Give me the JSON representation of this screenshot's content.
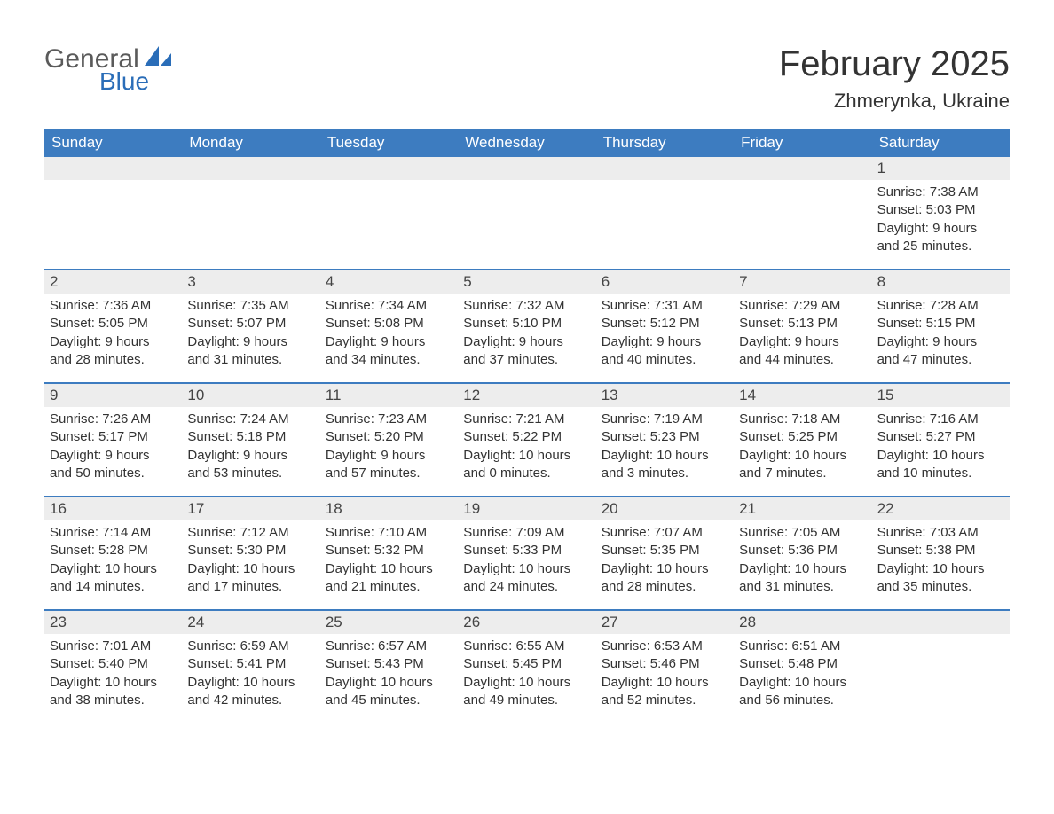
{
  "logo": {
    "word1": "General",
    "word2": "Blue"
  },
  "title": "February 2025",
  "location": "Zhmerynka, Ukraine",
  "colors": {
    "header_bg": "#3d7cc0",
    "header_text": "#ffffff",
    "daynum_bg": "#ededed",
    "border": "#3d7cc0",
    "text": "#333333",
    "logo_gray": "#5a5a5a",
    "logo_blue": "#2a6db8"
  },
  "typography": {
    "title_size": 40,
    "location_size": 22,
    "dayheader_size": 17,
    "body_size": 15
  },
  "days_of_week": [
    "Sunday",
    "Monday",
    "Tuesday",
    "Wednesday",
    "Thursday",
    "Friday",
    "Saturday"
  ],
  "weeks": [
    [
      {
        "blank": true
      },
      {
        "blank": true
      },
      {
        "blank": true
      },
      {
        "blank": true
      },
      {
        "blank": true
      },
      {
        "blank": true
      },
      {
        "day": "1",
        "sunrise": "Sunrise: 7:38 AM",
        "sunset": "Sunset: 5:03 PM",
        "daylight1": "Daylight: 9 hours",
        "daylight2": "and 25 minutes."
      }
    ],
    [
      {
        "day": "2",
        "sunrise": "Sunrise: 7:36 AM",
        "sunset": "Sunset: 5:05 PM",
        "daylight1": "Daylight: 9 hours",
        "daylight2": "and 28 minutes."
      },
      {
        "day": "3",
        "sunrise": "Sunrise: 7:35 AM",
        "sunset": "Sunset: 5:07 PM",
        "daylight1": "Daylight: 9 hours",
        "daylight2": "and 31 minutes."
      },
      {
        "day": "4",
        "sunrise": "Sunrise: 7:34 AM",
        "sunset": "Sunset: 5:08 PM",
        "daylight1": "Daylight: 9 hours",
        "daylight2": "and 34 minutes."
      },
      {
        "day": "5",
        "sunrise": "Sunrise: 7:32 AM",
        "sunset": "Sunset: 5:10 PM",
        "daylight1": "Daylight: 9 hours",
        "daylight2": "and 37 minutes."
      },
      {
        "day": "6",
        "sunrise": "Sunrise: 7:31 AM",
        "sunset": "Sunset: 5:12 PM",
        "daylight1": "Daylight: 9 hours",
        "daylight2": "and 40 minutes."
      },
      {
        "day": "7",
        "sunrise": "Sunrise: 7:29 AM",
        "sunset": "Sunset: 5:13 PM",
        "daylight1": "Daylight: 9 hours",
        "daylight2": "and 44 minutes."
      },
      {
        "day": "8",
        "sunrise": "Sunrise: 7:28 AM",
        "sunset": "Sunset: 5:15 PM",
        "daylight1": "Daylight: 9 hours",
        "daylight2": "and 47 minutes."
      }
    ],
    [
      {
        "day": "9",
        "sunrise": "Sunrise: 7:26 AM",
        "sunset": "Sunset: 5:17 PM",
        "daylight1": "Daylight: 9 hours",
        "daylight2": "and 50 minutes."
      },
      {
        "day": "10",
        "sunrise": "Sunrise: 7:24 AM",
        "sunset": "Sunset: 5:18 PM",
        "daylight1": "Daylight: 9 hours",
        "daylight2": "and 53 minutes."
      },
      {
        "day": "11",
        "sunrise": "Sunrise: 7:23 AM",
        "sunset": "Sunset: 5:20 PM",
        "daylight1": "Daylight: 9 hours",
        "daylight2": "and 57 minutes."
      },
      {
        "day": "12",
        "sunrise": "Sunrise: 7:21 AM",
        "sunset": "Sunset: 5:22 PM",
        "daylight1": "Daylight: 10 hours",
        "daylight2": "and 0 minutes."
      },
      {
        "day": "13",
        "sunrise": "Sunrise: 7:19 AM",
        "sunset": "Sunset: 5:23 PM",
        "daylight1": "Daylight: 10 hours",
        "daylight2": "and 3 minutes."
      },
      {
        "day": "14",
        "sunrise": "Sunrise: 7:18 AM",
        "sunset": "Sunset: 5:25 PM",
        "daylight1": "Daylight: 10 hours",
        "daylight2": "and 7 minutes."
      },
      {
        "day": "15",
        "sunrise": "Sunrise: 7:16 AM",
        "sunset": "Sunset: 5:27 PM",
        "daylight1": "Daylight: 10 hours",
        "daylight2": "and 10 minutes."
      }
    ],
    [
      {
        "day": "16",
        "sunrise": "Sunrise: 7:14 AM",
        "sunset": "Sunset: 5:28 PM",
        "daylight1": "Daylight: 10 hours",
        "daylight2": "and 14 minutes."
      },
      {
        "day": "17",
        "sunrise": "Sunrise: 7:12 AM",
        "sunset": "Sunset: 5:30 PM",
        "daylight1": "Daylight: 10 hours",
        "daylight2": "and 17 minutes."
      },
      {
        "day": "18",
        "sunrise": "Sunrise: 7:10 AM",
        "sunset": "Sunset: 5:32 PM",
        "daylight1": "Daylight: 10 hours",
        "daylight2": "and 21 minutes."
      },
      {
        "day": "19",
        "sunrise": "Sunrise: 7:09 AM",
        "sunset": "Sunset: 5:33 PM",
        "daylight1": "Daylight: 10 hours",
        "daylight2": "and 24 minutes."
      },
      {
        "day": "20",
        "sunrise": "Sunrise: 7:07 AM",
        "sunset": "Sunset: 5:35 PM",
        "daylight1": "Daylight: 10 hours",
        "daylight2": "and 28 minutes."
      },
      {
        "day": "21",
        "sunrise": "Sunrise: 7:05 AM",
        "sunset": "Sunset: 5:36 PM",
        "daylight1": "Daylight: 10 hours",
        "daylight2": "and 31 minutes."
      },
      {
        "day": "22",
        "sunrise": "Sunrise: 7:03 AM",
        "sunset": "Sunset: 5:38 PM",
        "daylight1": "Daylight: 10 hours",
        "daylight2": "and 35 minutes."
      }
    ],
    [
      {
        "day": "23",
        "sunrise": "Sunrise: 7:01 AM",
        "sunset": "Sunset: 5:40 PM",
        "daylight1": "Daylight: 10 hours",
        "daylight2": "and 38 minutes."
      },
      {
        "day": "24",
        "sunrise": "Sunrise: 6:59 AM",
        "sunset": "Sunset: 5:41 PM",
        "daylight1": "Daylight: 10 hours",
        "daylight2": "and 42 minutes."
      },
      {
        "day": "25",
        "sunrise": "Sunrise: 6:57 AM",
        "sunset": "Sunset: 5:43 PM",
        "daylight1": "Daylight: 10 hours",
        "daylight2": "and 45 minutes."
      },
      {
        "day": "26",
        "sunrise": "Sunrise: 6:55 AM",
        "sunset": "Sunset: 5:45 PM",
        "daylight1": "Daylight: 10 hours",
        "daylight2": "and 49 minutes."
      },
      {
        "day": "27",
        "sunrise": "Sunrise: 6:53 AM",
        "sunset": "Sunset: 5:46 PM",
        "daylight1": "Daylight: 10 hours",
        "daylight2": "and 52 minutes."
      },
      {
        "day": "28",
        "sunrise": "Sunrise: 6:51 AM",
        "sunset": "Sunset: 5:48 PM",
        "daylight1": "Daylight: 10 hours",
        "daylight2": "and 56 minutes."
      },
      {
        "blank": true
      }
    ]
  ]
}
